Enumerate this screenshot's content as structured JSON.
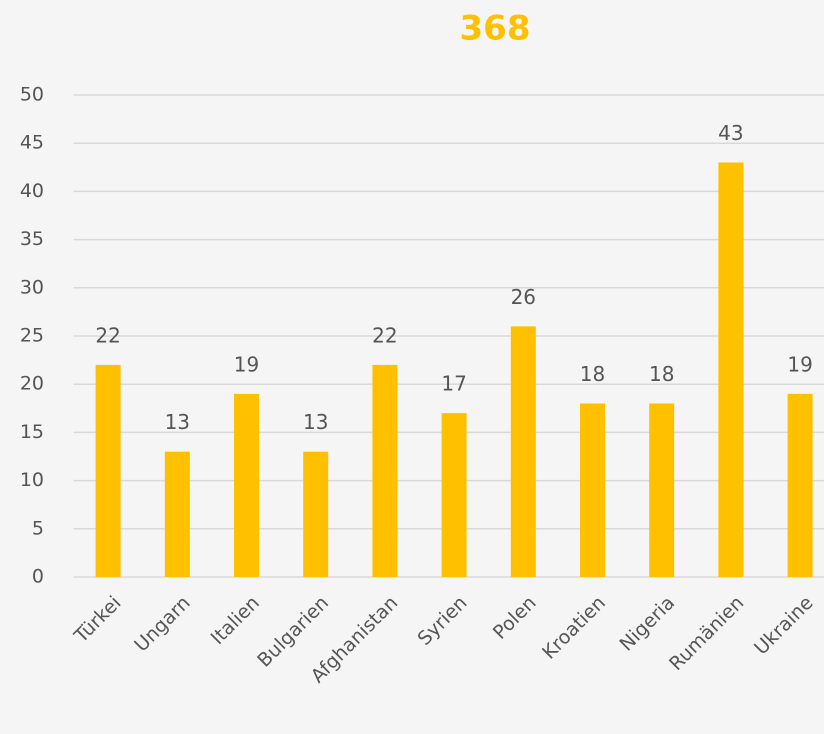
{
  "chart_data": {
    "type": "bar",
    "title": "368",
    "categories": [
      "Türkei",
      "Ungarn",
      "Italien",
      "Bulgarien",
      "Afghanistan",
      "Syrien",
      "Polen",
      "Kroatien",
      "Nigeria",
      "Rumänien",
      "Ukraine"
    ],
    "values": [
      22,
      13,
      19,
      13,
      22,
      17,
      26,
      18,
      18,
      43,
      19
    ],
    "color": "#ffc000",
    "ylim": [
      0,
      50
    ],
    "yticks": [
      0,
      5,
      10,
      15,
      20,
      25,
      30,
      35,
      40,
      45,
      50
    ],
    "grid": true
  }
}
